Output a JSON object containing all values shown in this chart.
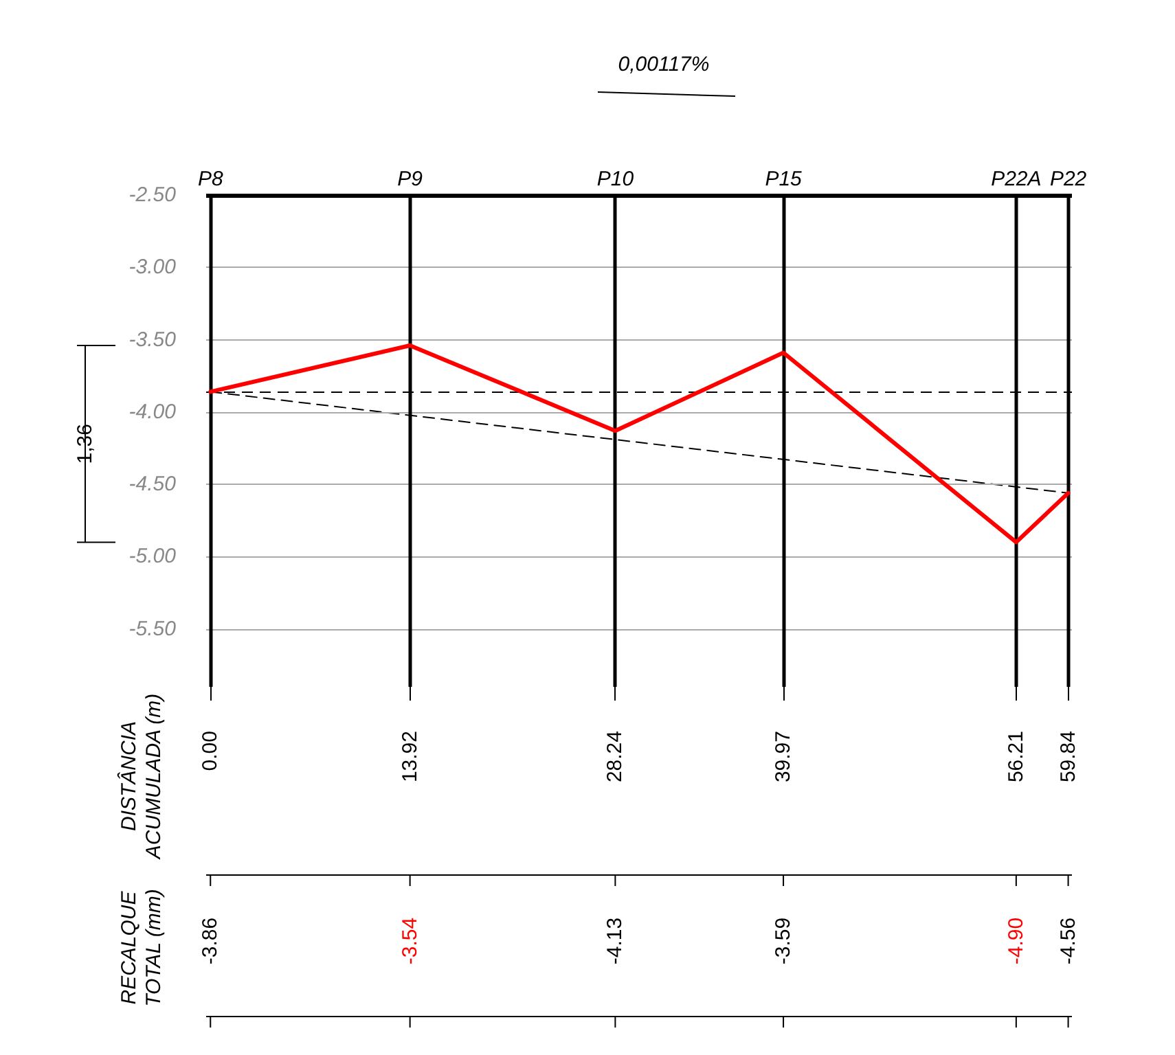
{
  "chart_data": {
    "type": "line",
    "x": [
      0,
      13.92,
      28.24,
      39.97,
      56.21,
      59.84
    ],
    "series": [
      {
        "color": "#ff0000",
        "values": [
          -3.86,
          -3.54,
          -4.13,
          -3.59,
          -4.9,
          -4.56
        ]
      },
      {
        "color": "#000000",
        "x": [
          0,
          59.84
        ],
        "values": [
          -3.86,
          -4.56
        ],
        "line_style": "dashed"
      }
    ],
    "xlim": [
      -0.3,
      60.1
    ],
    "xticks": [
      {
        "value": 0,
        "label": "0.00"
      },
      {
        "value": 13.92,
        "label": "13.92"
      },
      {
        "value": 28.24,
        "label": "28.24"
      },
      {
        "value": 39.97,
        "label": "39.97"
      },
      {
        "value": 56.21,
        "label": "56.21"
      },
      {
        "value": 59.84,
        "label": "59.84"
      }
    ],
    "ylim": [
      -5.9,
      -2.5
    ],
    "yticks": [
      {
        "value": -2.5,
        "label": "-2.50"
      },
      {
        "value": -3,
        "label": "-3.00"
      },
      {
        "value": -3.5,
        "label": "-3.50"
      },
      {
        "value": -4,
        "label": "-4.00"
      },
      {
        "value": -4.5,
        "label": "-4.50"
      },
      {
        "value": -5,
        "label": "-5.00"
      },
      {
        "value": -5.5,
        "label": "-5.50"
      }
    ],
    "ref_lines": [
      {
        "axis": "x",
        "value": 0,
        "label": "P8",
        "color": "#000000"
      },
      {
        "axis": "x",
        "value": 13.92,
        "label": "P9",
        "color": "#000000"
      },
      {
        "axis": "x",
        "value": 28.24,
        "label": "P10",
        "color": "#000000"
      },
      {
        "axis": "x",
        "value": 39.97,
        "label": "P15",
        "color": "#000000"
      },
      {
        "axis": "x",
        "value": 56.21,
        "label": "P22A",
        "color": "#000000"
      },
      {
        "axis": "x",
        "value": 59.84,
        "label": "P22",
        "color": "#000000"
      },
      {
        "axis": "y",
        "value": -2.5,
        "color": "#000000"
      },
      {
        "axis": "y",
        "value": -3.86,
        "color": "#000000",
        "line_style": "dashed"
      }
    ],
    "annotations": [
      "1,36",
      "0,00117%",
      "DISTÂNCIA ACUMULADA (m)",
      "RECALQUE TOTAL (mm)",
      "-3.86",
      "-3.54",
      "-4.13",
      "-3.59",
      "-4.90",
      "-4.56"
    ],
    "grid": "y",
    "marker": "none",
    "line_style": "solid"
  }
}
